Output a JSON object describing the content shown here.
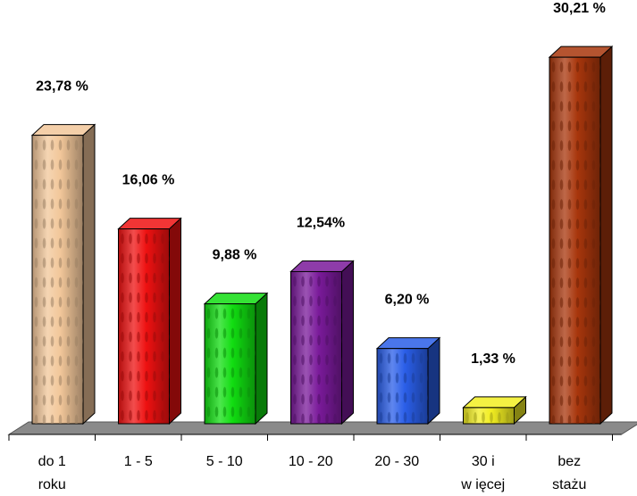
{
  "chart_data": {
    "type": "bar",
    "three_d": true,
    "grid": false,
    "legend": "none",
    "ylim": [
      0,
      32
    ],
    "categories": [
      [
        "do 1",
        "roku"
      ],
      [
        "1 - 5"
      ],
      [
        "5 - 10"
      ],
      [
        "10 - 20"
      ],
      [
        "20 - 30"
      ],
      [
        "30 i",
        "w ięcej"
      ],
      [
        "bez",
        "stażu"
      ]
    ],
    "values": [
      23.78,
      16.06,
      9.88,
      12.54,
      6.2,
      1.33,
      30.21
    ],
    "value_labels": [
      "23,78 %",
      "16,06 %",
      "9,88 %",
      "12,54%",
      "6,20 %",
      "1,33 %",
      "30,21 %"
    ],
    "colors": [
      "#f2c79a",
      "#ee1111",
      "#11dd11",
      "#7a1a9a",
      "#2a5ee8",
      "#f2ee22",
      "#a8360c"
    ]
  }
}
